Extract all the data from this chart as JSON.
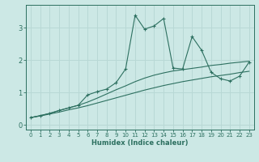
{
  "xlabel": "Humidex (Indice chaleur)",
  "ylabel": "",
  "background_color": "#cce8e5",
  "grid_color": "#b8d8d5",
  "line_color": "#2d7060",
  "xlim": [
    -0.5,
    23.5
  ],
  "ylim": [
    -0.15,
    3.7
  ],
  "xticks": [
    0,
    1,
    2,
    3,
    4,
    5,
    6,
    7,
    8,
    9,
    10,
    11,
    12,
    13,
    14,
    15,
    16,
    17,
    18,
    19,
    20,
    21,
    22,
    23
  ],
  "yticks": [
    0,
    1,
    2,
    3
  ],
  "x": [
    0,
    1,
    2,
    3,
    4,
    5,
    6,
    7,
    8,
    9,
    10,
    11,
    12,
    13,
    14,
    15,
    16,
    17,
    18,
    19,
    20,
    21,
    22,
    23
  ],
  "y_main": [
    0.22,
    0.28,
    0.35,
    0.44,
    0.52,
    0.6,
    0.92,
    1.02,
    1.1,
    1.3,
    1.72,
    3.38,
    2.95,
    3.05,
    3.28,
    1.75,
    1.72,
    2.72,
    2.3,
    1.62,
    1.42,
    1.35,
    1.5,
    1.93
  ],
  "y_upper": [
    0.22,
    0.28,
    0.35,
    0.44,
    0.52,
    0.6,
    0.7,
    0.82,
    0.95,
    1.08,
    1.2,
    1.33,
    1.44,
    1.53,
    1.6,
    1.66,
    1.7,
    1.74,
    1.78,
    1.83,
    1.86,
    1.9,
    1.93,
    1.96
  ],
  "y_lower": [
    0.22,
    0.27,
    0.33,
    0.39,
    0.46,
    0.52,
    0.59,
    0.67,
    0.75,
    0.83,
    0.91,
    0.99,
    1.07,
    1.14,
    1.21,
    1.27,
    1.33,
    1.38,
    1.43,
    1.48,
    1.52,
    1.56,
    1.61,
    1.65
  ]
}
